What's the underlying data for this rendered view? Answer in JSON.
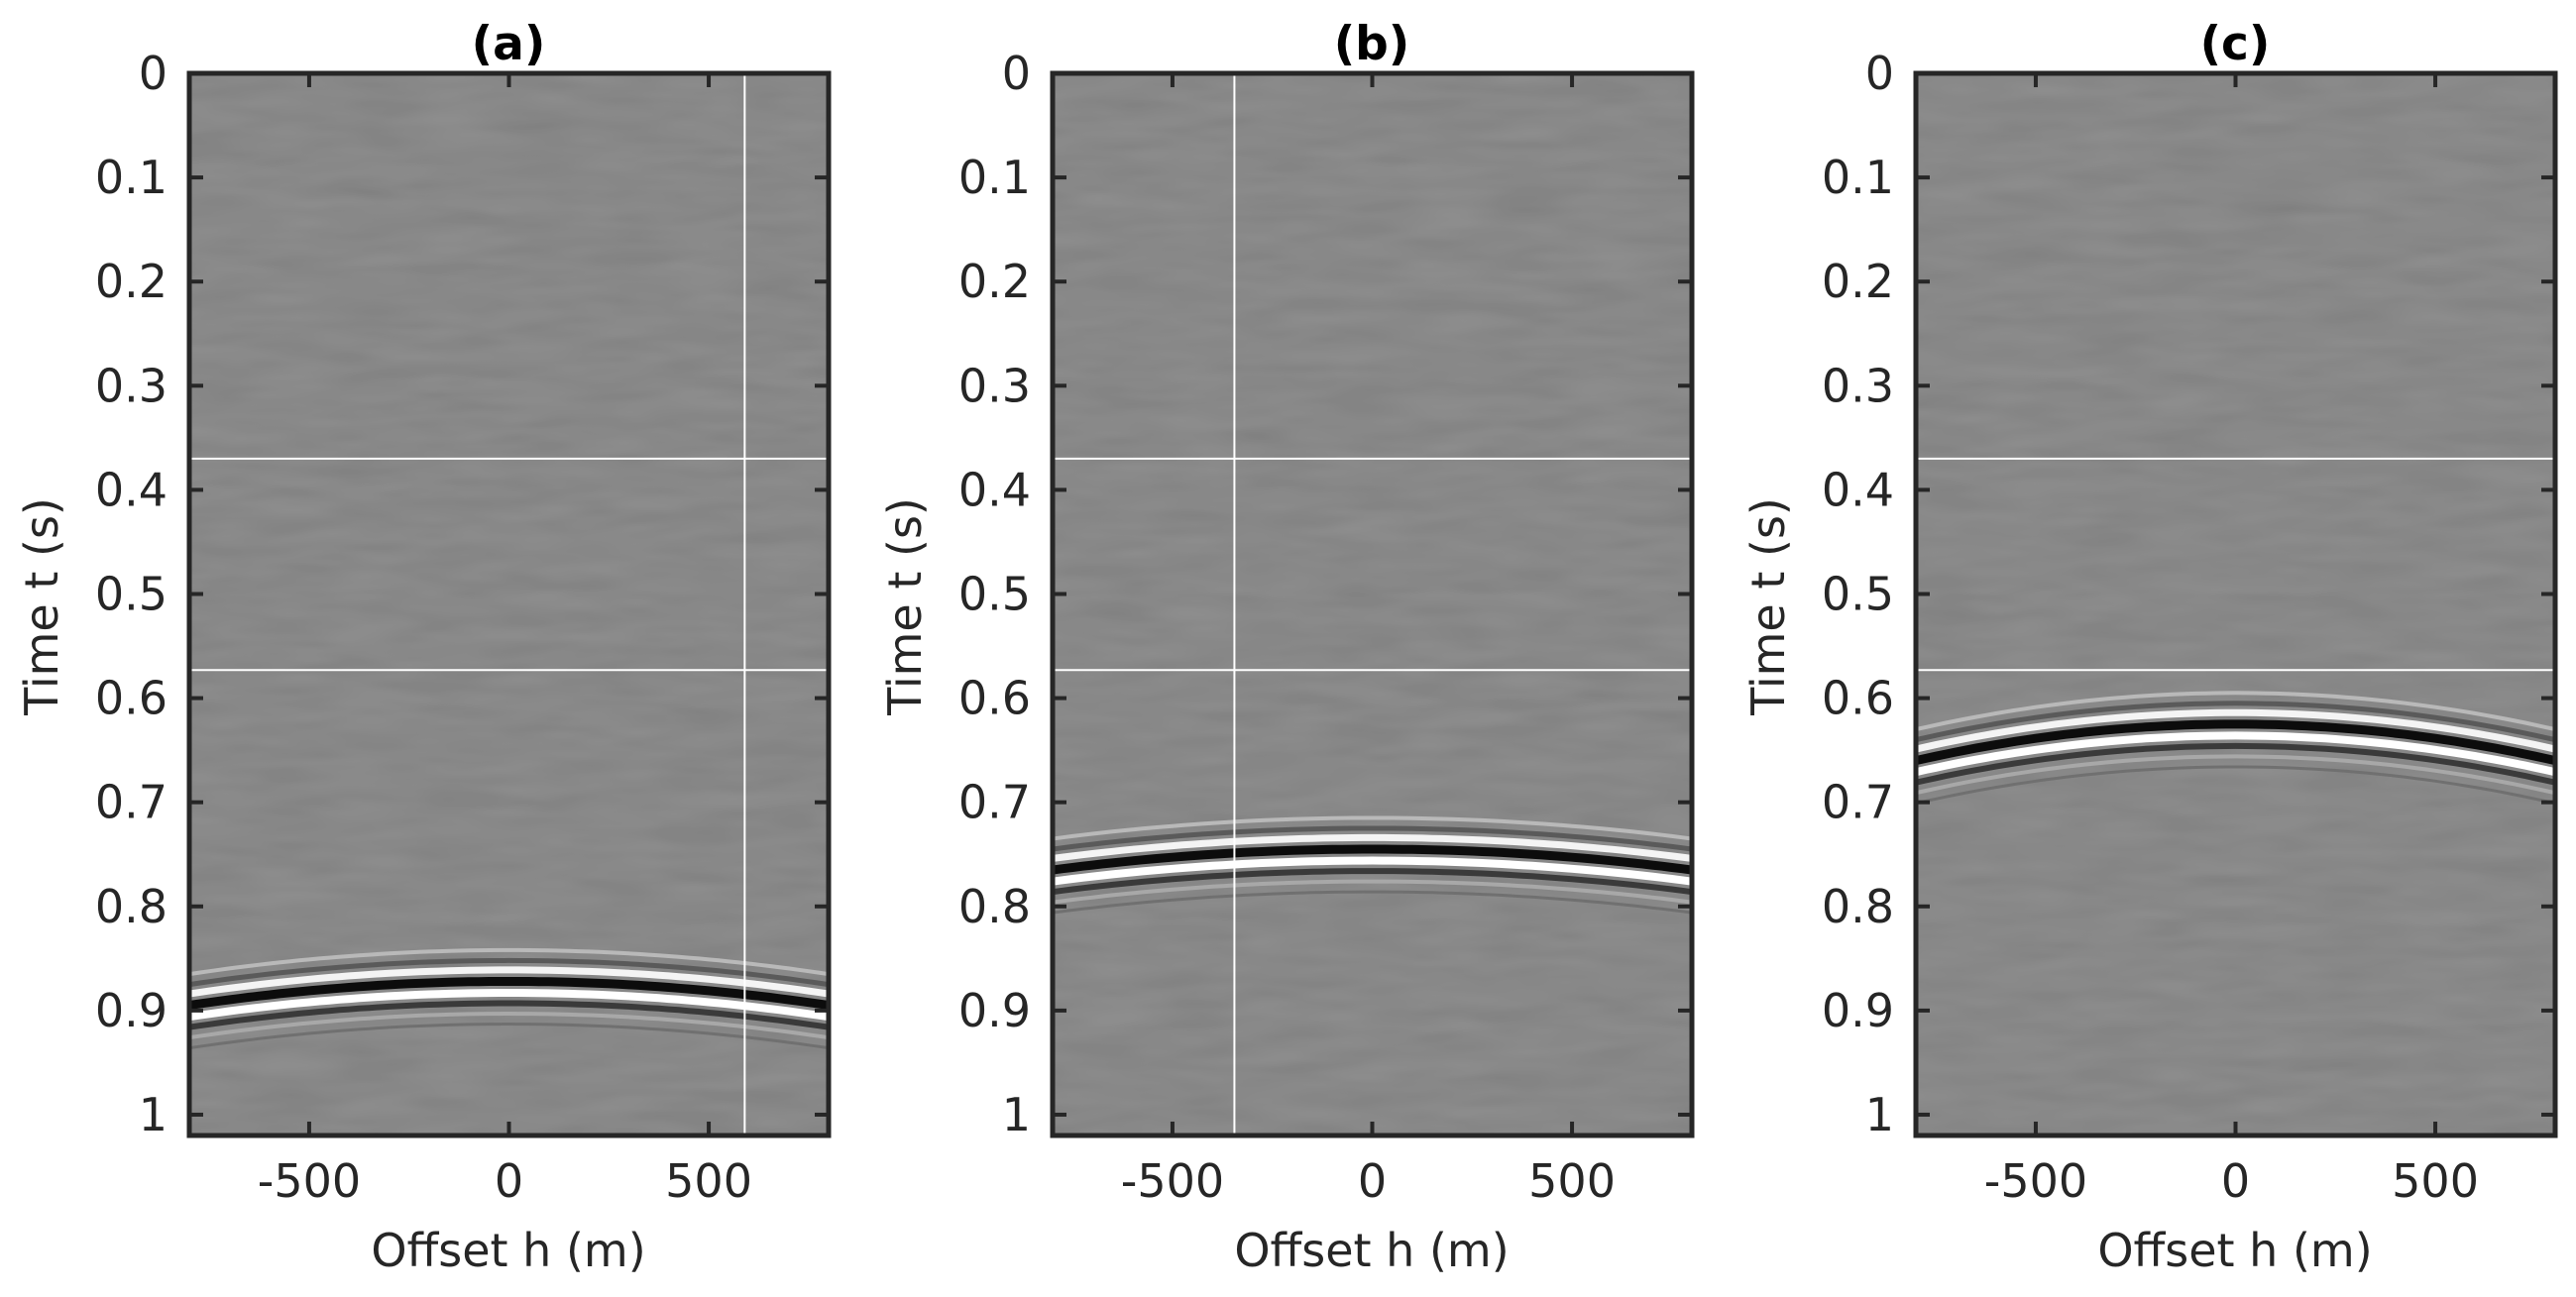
{
  "figure": {
    "background": "#ffffff",
    "axis_color": "#262626",
    "grid_line_color": "#ffffff"
  },
  "chart_data": [
    {
      "type": "heatmap",
      "title": "(a)",
      "xlabel": "Offset h (m)",
      "ylabel": "Time t (s)",
      "xlim": [
        -800,
        800
      ],
      "ylim": [
        0,
        1.02
      ],
      "y_reversed": true,
      "xticks": [
        -500,
        0,
        500
      ],
      "xtick_labels": [
        "-500",
        "0",
        "500"
      ],
      "yticks": [
        0,
        0.1,
        0.2,
        0.3,
        0.4,
        0.5,
        0.6,
        0.7,
        0.8,
        0.9,
        1
      ],
      "ytick_labels": [
        "0",
        "0.1",
        "0.2",
        "0.3",
        "0.4",
        "0.5",
        "0.6",
        "0.7",
        "0.8",
        "0.9",
        "1"
      ],
      "colormap": "gray",
      "events": [
        {
          "apex_time": 0.872,
          "edge_time": 0.895
        }
      ],
      "grid_lines": {
        "x": [
          590
        ],
        "y": [
          0.37,
          0.573
        ]
      }
    },
    {
      "type": "heatmap",
      "title": "(b)",
      "xlabel": "Offset h (m)",
      "ylabel": "Time t (s)",
      "xlim": [
        -800,
        800
      ],
      "ylim": [
        0,
        1.02
      ],
      "y_reversed": true,
      "xticks": [
        -500,
        0,
        500
      ],
      "xtick_labels": [
        "-500",
        "0",
        "500"
      ],
      "yticks": [
        0,
        0.1,
        0.2,
        0.3,
        0.4,
        0.5,
        0.6,
        0.7,
        0.8,
        0.9,
        1
      ],
      "ytick_labels": [
        "0",
        "0.1",
        "0.2",
        "0.3",
        "0.4",
        "0.5",
        "0.6",
        "0.7",
        "0.8",
        "0.9",
        "1"
      ],
      "colormap": "gray",
      "events": [
        {
          "apex_time": 0.745,
          "edge_time": 0.765
        }
      ],
      "grid_lines": {
        "x": [
          -345
        ],
        "y": [
          0.37,
          0.573
        ]
      }
    },
    {
      "type": "heatmap",
      "title": "(c)",
      "xlabel": "Offset h (m)",
      "ylabel": "Time t (s)",
      "xlim": [
        -800,
        800
      ],
      "ylim": [
        0,
        1.02
      ],
      "y_reversed": true,
      "xticks": [
        -500,
        0,
        500
      ],
      "xtick_labels": [
        "-500",
        "0",
        "500"
      ],
      "yticks": [
        0,
        0.1,
        0.2,
        0.3,
        0.4,
        0.5,
        0.6,
        0.7,
        0.8,
        0.9,
        1
      ],
      "ytick_labels": [
        "0",
        "0.1",
        "0.2",
        "0.3",
        "0.4",
        "0.5",
        "0.6",
        "0.7",
        "0.8",
        "0.9",
        "1"
      ],
      "colormap": "gray",
      "events": [
        {
          "apex_time": 0.625,
          "edge_time": 0.66
        }
      ],
      "grid_lines": {
        "x": [],
        "y": [
          0.37,
          0.573
        ]
      }
    }
  ]
}
